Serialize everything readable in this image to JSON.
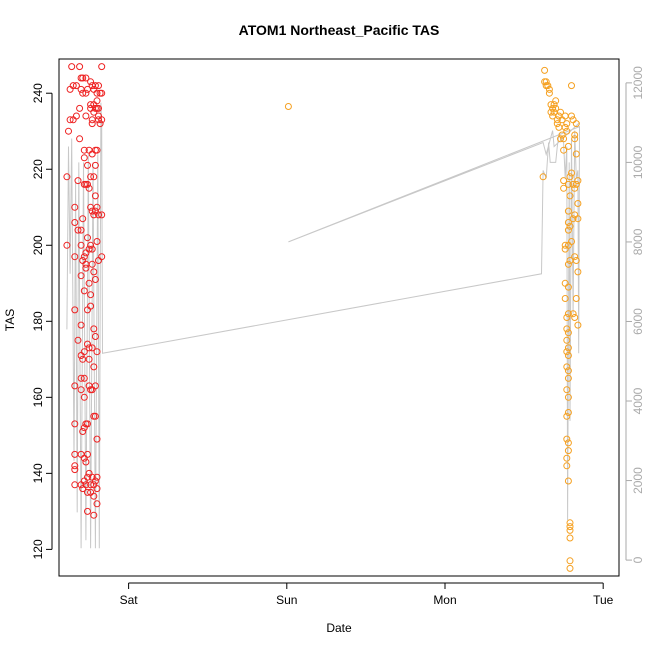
{
  "chart_data": {
    "type": "scatter",
    "title": "ATOM1 Northeast_Pacific TAS",
    "xlabel": "Date",
    "ylabel": "TAS",
    "x_unit": "days",
    "x_ticks": [
      {
        "label": "Sat",
        "value": 1
      },
      {
        "label": "Sun",
        "value": 2
      },
      {
        "label": "Mon",
        "value": 3
      },
      {
        "label": "Tue",
        "value": 4
      }
    ],
    "y_ticks": [
      120,
      140,
      160,
      180,
      200,
      220,
      240
    ],
    "y2_ticks": [
      0,
      2000,
      4000,
      6000,
      8000,
      10000,
      12000
    ],
    "xlim": [
      0.56,
      4.1
    ],
    "ylim": [
      113,
      249
    ],
    "y2lim": [
      -400,
      12600
    ],
    "grid": false,
    "legend": "none",
    "colors": {
      "series1": "#ee2222",
      "series2": "#f5a020",
      "altitude_line": "#c8c8c8",
      "axis": "#000000",
      "right_axis": "#aaaaaa"
    },
    "series": [
      {
        "points": [
          [
            0.61,
            200.0
          ],
          [
            0.61,
            218.0
          ],
          [
            0.62,
            230.0
          ],
          [
            0.63,
            233.0
          ],
          [
            0.63,
            241.0
          ],
          [
            0.64,
            247.0
          ],
          [
            0.65,
            242.0
          ],
          [
            0.65,
            233.0
          ],
          [
            0.66,
            210.0
          ],
          [
            0.66,
            206.0
          ],
          [
            0.66,
            197.0
          ],
          [
            0.66,
            183.0
          ],
          [
            0.66,
            163.0
          ],
          [
            0.66,
            153.0
          ],
          [
            0.66,
            145.0
          ],
          [
            0.66,
            142.0
          ],
          [
            0.66,
            141.0
          ],
          [
            0.66,
            137.0
          ],
          [
            0.67,
            234.0
          ],
          [
            0.67,
            242.0
          ],
          [
            0.68,
            217.0
          ],
          [
            0.68,
            204.0
          ],
          [
            0.68,
            175.0
          ],
          [
            0.69,
            247.0
          ],
          [
            0.69,
            236.0
          ],
          [
            0.69,
            228.0
          ],
          [
            0.7,
            244.0
          ],
          [
            0.7,
            241.0
          ],
          [
            0.7,
            204.0
          ],
          [
            0.7,
            200.0
          ],
          [
            0.7,
            192.0
          ],
          [
            0.7,
            179.0
          ],
          [
            0.7,
            171.0
          ],
          [
            0.7,
            165.0
          ],
          [
            0.7,
            162.0
          ],
          [
            0.7,
            145.0
          ],
          [
            0.7,
            137.0
          ],
          [
            0.71,
            244.0
          ],
          [
            0.71,
            240.0
          ],
          [
            0.71,
            207.0
          ],
          [
            0.71,
            196.0
          ],
          [
            0.71,
            170.0
          ],
          [
            0.71,
            151.0
          ],
          [
            0.71,
            136.0
          ],
          [
            0.72,
            223.0
          ],
          [
            0.72,
            225.0
          ],
          [
            0.72,
            216.0
          ],
          [
            0.72,
            197.0
          ],
          [
            0.72,
            188.0
          ],
          [
            0.72,
            172.0
          ],
          [
            0.72,
            165.0
          ],
          [
            0.72,
            160.0
          ],
          [
            0.72,
            152.0
          ],
          [
            0.72,
            144.0
          ],
          [
            0.72,
            138.0
          ],
          [
            0.73,
            244.0
          ],
          [
            0.73,
            240.0
          ],
          [
            0.73,
            234.0
          ],
          [
            0.73,
            216.0
          ],
          [
            0.73,
            198.0
          ],
          [
            0.73,
            195.0
          ],
          [
            0.73,
            194.0
          ],
          [
            0.73,
            153.0
          ],
          [
            0.73,
            143.0
          ],
          [
            0.73,
            137.0
          ],
          [
            0.74,
            241.0
          ],
          [
            0.74,
            221.0
          ],
          [
            0.74,
            216.0
          ],
          [
            0.74,
            202.0
          ],
          [
            0.74,
            183.0
          ],
          [
            0.74,
            174.0
          ],
          [
            0.74,
            153.0
          ],
          [
            0.74,
            145.0
          ],
          [
            0.74,
            139.0
          ],
          [
            0.74,
            135.0
          ],
          [
            0.74,
            130.0
          ],
          [
            0.75,
            225.0
          ],
          [
            0.75,
            215.0
          ],
          [
            0.75,
            199.0
          ],
          [
            0.75,
            190.0
          ],
          [
            0.75,
            173.0
          ],
          [
            0.75,
            170.0
          ],
          [
            0.75,
            163.0
          ],
          [
            0.75,
            140.0
          ],
          [
            0.76,
            243.0
          ],
          [
            0.76,
            237.0
          ],
          [
            0.76,
            236.0
          ],
          [
            0.76,
            218.0
          ],
          [
            0.76,
            210.0
          ],
          [
            0.76,
            200.0
          ],
          [
            0.76,
            187.0
          ],
          [
            0.76,
            184.0
          ],
          [
            0.76,
            162.0
          ],
          [
            0.76,
            137.0
          ],
          [
            0.76,
            135.0
          ],
          [
            0.77,
            242.0
          ],
          [
            0.77,
            233.0
          ],
          [
            0.77,
            232.0
          ],
          [
            0.77,
            224.0
          ],
          [
            0.77,
            209.0
          ],
          [
            0.77,
            199.0
          ],
          [
            0.77,
            195.0
          ],
          [
            0.77,
            173.0
          ],
          [
            0.77,
            162.0
          ],
          [
            0.77,
            139.0
          ],
          [
            0.78,
            241.0
          ],
          [
            0.78,
            237.0
          ],
          [
            0.78,
            235.0
          ],
          [
            0.78,
            218.0
          ],
          [
            0.78,
            208.0
          ],
          [
            0.78,
            193.0
          ],
          [
            0.78,
            178.0
          ],
          [
            0.78,
            168.0
          ],
          [
            0.78,
            155.0
          ],
          [
            0.78,
            137.0
          ],
          [
            0.78,
            134.0
          ],
          [
            0.78,
            129.0
          ],
          [
            0.79,
            242.0
          ],
          [
            0.79,
            236.0
          ],
          [
            0.79,
            225.0
          ],
          [
            0.79,
            221.0
          ],
          [
            0.79,
            213.0
          ],
          [
            0.79,
            209.0
          ],
          [
            0.79,
            191.0
          ],
          [
            0.79,
            176.0
          ],
          [
            0.79,
            163.0
          ],
          [
            0.79,
            155.0
          ],
          [
            0.79,
            138.0
          ],
          [
            0.8,
            240.0
          ],
          [
            0.8,
            238.0
          ],
          [
            0.8,
            236.0
          ],
          [
            0.8,
            225.0
          ],
          [
            0.8,
            210.0
          ],
          [
            0.8,
            201.0
          ],
          [
            0.8,
            172.0
          ],
          [
            0.8,
            149.0
          ],
          [
            0.8,
            139.0
          ],
          [
            0.8,
            136.0
          ],
          [
            0.8,
            132.0
          ],
          [
            0.81,
            242.0
          ],
          [
            0.81,
            236.0
          ],
          [
            0.81,
            234.0
          ],
          [
            0.81,
            233.0
          ],
          [
            0.81,
            208.0
          ],
          [
            0.81,
            196.0
          ],
          [
            0.82,
            240.0
          ],
          [
            0.82,
            232.0
          ],
          [
            0.83,
            247.0
          ],
          [
            0.83,
            240.0
          ],
          [
            0.83,
            233.0
          ],
          [
            0.83,
            208.0
          ],
          [
            0.83,
            197.0
          ]
        ]
      },
      {
        "points": [
          [
            2.01,
            236.5
          ],
          [
            3.62,
            218.0
          ],
          [
            3.63,
            246.0
          ],
          [
            3.63,
            243.0
          ],
          [
            3.64,
            242.0
          ],
          [
            3.64,
            243.0
          ],
          [
            3.65,
            242.0
          ],
          [
            3.66,
            241.0
          ],
          [
            3.66,
            240.0
          ],
          [
            3.67,
            235.0
          ],
          [
            3.67,
            237.0
          ],
          [
            3.68,
            234.0
          ],
          [
            3.68,
            236.0
          ],
          [
            3.69,
            235.0
          ],
          [
            3.69,
            237.0
          ],
          [
            3.7,
            236.0
          ],
          [
            3.7,
            238.0
          ],
          [
            3.71,
            233.0
          ],
          [
            3.71,
            232.0
          ],
          [
            3.72,
            234.0
          ],
          [
            3.72,
            231.0
          ],
          [
            3.73,
            235.0
          ],
          [
            3.73,
            228.0
          ],
          [
            3.74,
            229.0
          ],
          [
            3.74,
            233.0
          ],
          [
            3.75,
            228.0
          ],
          [
            3.75,
            225.0
          ],
          [
            3.75,
            217.0
          ],
          [
            3.75,
            215.0
          ],
          [
            3.76,
            234.0
          ],
          [
            3.76,
            231.0
          ],
          [
            3.76,
            200.0
          ],
          [
            3.76,
            199.0
          ],
          [
            3.76,
            190.0
          ],
          [
            3.76,
            186.0
          ],
          [
            3.77,
            230.0
          ],
          [
            3.77,
            232.0
          ],
          [
            3.77,
            181.0
          ],
          [
            3.77,
            178.0
          ],
          [
            3.77,
            175.0
          ],
          [
            3.77,
            172.0
          ],
          [
            3.77,
            168.0
          ],
          [
            3.77,
            162.0
          ],
          [
            3.77,
            155.0
          ],
          [
            3.77,
            149.0
          ],
          [
            3.77,
            144.0
          ],
          [
            3.77,
            142.0
          ],
          [
            3.78,
            226.0
          ],
          [
            3.78,
            216.0
          ],
          [
            3.78,
            209.0
          ],
          [
            3.78,
            206.0
          ],
          [
            3.78,
            204.0
          ],
          [
            3.78,
            200.0
          ],
          [
            3.78,
            195.0
          ],
          [
            3.78,
            189.0
          ],
          [
            3.78,
            182.0
          ],
          [
            3.78,
            177.0
          ],
          [
            3.78,
            173.0
          ],
          [
            3.78,
            171.0
          ],
          [
            3.78,
            167.0
          ],
          [
            3.78,
            165.0
          ],
          [
            3.78,
            160.0
          ],
          [
            3.78,
            156.0
          ],
          [
            3.78,
            148.0
          ],
          [
            3.78,
            146.0
          ],
          [
            3.78,
            138.0
          ],
          [
            3.79,
            218.0
          ],
          [
            3.79,
            213.0
          ],
          [
            3.79,
            205.0
          ],
          [
            3.79,
            196.0
          ],
          [
            3.79,
            127.0
          ],
          [
            3.79,
            126.0
          ],
          [
            3.79,
            125.0
          ],
          [
            3.79,
            123.0
          ],
          [
            3.79,
            117.0
          ],
          [
            3.79,
            115.0
          ],
          [
            3.8,
            242.0
          ],
          [
            3.8,
            234.0
          ],
          [
            3.8,
            219.0
          ],
          [
            3.8,
            201.0
          ],
          [
            3.81,
            233.0
          ],
          [
            3.81,
            216.0
          ],
          [
            3.81,
            207.0
          ],
          [
            3.81,
            182.0
          ],
          [
            3.82,
            229.0
          ],
          [
            3.82,
            228.0
          ],
          [
            3.82,
            215.0
          ],
          [
            3.82,
            208.0
          ],
          [
            3.82,
            197.0
          ],
          [
            3.82,
            181.0
          ],
          [
            3.83,
            232.0
          ],
          [
            3.83,
            224.0
          ],
          [
            3.83,
            216.0
          ],
          [
            3.83,
            196.0
          ],
          [
            3.83,
            186.0
          ],
          [
            3.84,
            217.0
          ],
          [
            3.84,
            211.0
          ],
          [
            3.84,
            207.0
          ],
          [
            3.84,
            193.0
          ],
          [
            3.84,
            179.0
          ]
        ]
      }
    ],
    "altitude_line": [
      [
        0.61,
        5800
      ],
      [
        0.62,
        10400
      ],
      [
        0.63,
        7200
      ],
      [
        0.64,
        10600
      ],
      [
        0.655,
        2500
      ],
      [
        0.665,
        9500
      ],
      [
        0.675,
        1200
      ],
      [
        0.685,
        10000
      ],
      [
        0.7,
        300
      ],
      [
        0.715,
        10000
      ],
      [
        0.73,
        500
      ],
      [
        0.745,
        10200
      ],
      [
        0.76,
        300
      ],
      [
        0.775,
        10000
      ],
      [
        0.79,
        300
      ],
      [
        0.805,
        10200
      ],
      [
        0.815,
        300
      ],
      [
        0.825,
        11500
      ],
      [
        0.83,
        10900
      ],
      [
        0.835,
        5200
      ],
      [
        3.61,
        7200
      ],
      [
        3.62,
        9800
      ],
      [
        3.64,
        9600
      ],
      [
        3.655,
        10500
      ],
      [
        3.665,
        10000
      ],
      [
        3.7,
        10000
      ],
      [
        3.71,
        10400
      ],
      [
        3.72,
        10700
      ],
      [
        3.75,
        10500
      ],
      [
        3.76,
        9600
      ],
      [
        3.77,
        10400
      ],
      [
        3.775,
        1000
      ],
      [
        3.785,
        10000
      ],
      [
        3.79,
        3500
      ],
      [
        3.8,
        10600
      ],
      [
        3.81,
        6200
      ],
      [
        3.82,
        10800
      ],
      [
        3.83,
        9600
      ],
      [
        3.84,
        9800
      ],
      [
        3.845,
        5200
      ],
      [
        3.85,
        10900
      ],
      [
        2.01,
        8000
      ],
      [
        3.62,
        10500
      ],
      [
        3.64,
        10200
      ],
      [
        3.68,
        10800
      ],
      [
        3.69,
        10400
      ],
      [
        3.85,
        11000
      ]
    ]
  }
}
